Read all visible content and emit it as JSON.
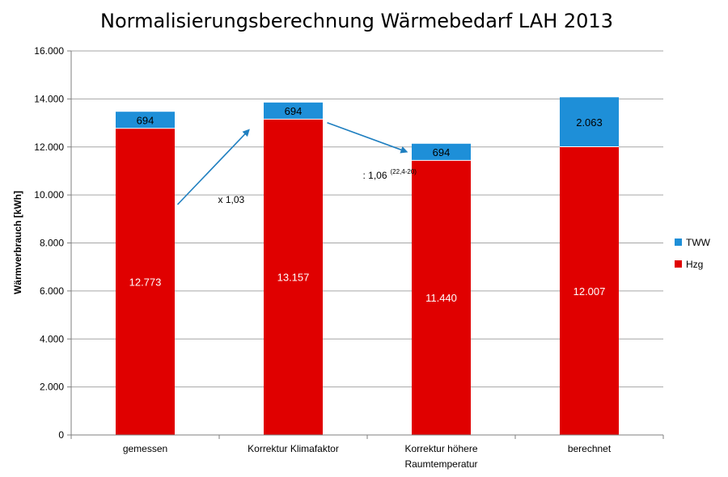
{
  "colors": {
    "hzg": "#e00000",
    "tww": "#1e8fd8",
    "arrow": "#1f7fc0",
    "grid": "#a6a6a6"
  },
  "chart_data": {
    "type": "bar",
    "stacked": true,
    "title": "Normalisierungsberechnung Wärmebedarf LAH 2013",
    "xlabel": "",
    "ylabel": "Wärmverbrauch [kWh]",
    "ylim": [
      0,
      16000
    ],
    "yticks": [
      0,
      2000,
      4000,
      6000,
      8000,
      10000,
      12000,
      14000,
      16000
    ],
    "ytick_labels": [
      "0",
      "2.000",
      "4.000",
      "6.000",
      "8.000",
      "10.000",
      "12.000",
      "14.000",
      "16.000"
    ],
    "grid": true,
    "legend_position": "right",
    "categories": [
      [
        "gemessen"
      ],
      [
        "Korrektur Klimafaktor"
      ],
      [
        "Korrektur höhere",
        "Raumtemperatur"
      ],
      [
        "berechnet"
      ]
    ],
    "series": [
      {
        "name": "Hzg",
        "values": [
          12773,
          13157,
          11440,
          12007
        ],
        "labels": [
          "12.773",
          "13.157",
          "11.440",
          "12.007"
        ]
      },
      {
        "name": "TWW",
        "values": [
          694,
          694,
          694,
          2063
        ],
        "labels": [
          "694",
          "694",
          "694",
          "2.063"
        ]
      }
    ],
    "legend": [
      "TWW",
      "Hzg"
    ],
    "annotations": [
      {
        "text": "x 1,03",
        "sup": ""
      },
      {
        "text": ": 1,06",
        "sup": "(22,4-20)"
      }
    ]
  }
}
